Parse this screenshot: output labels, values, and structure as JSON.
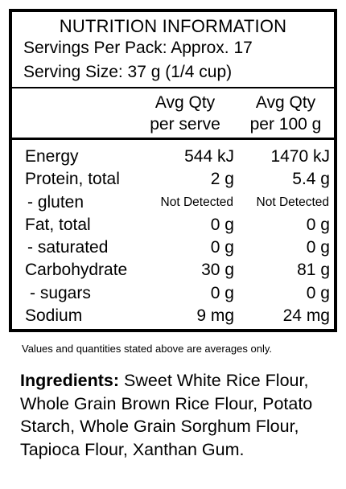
{
  "panel": {
    "title": "NUTRITION INFORMATION",
    "servings_per_pack": "Servings Per Pack: Approx. 17",
    "serving_size": "Serving Size: 37 g (1/4 cup)"
  },
  "columns": {
    "per_serve": [
      "Avg Qty",
      "per serve"
    ],
    "per_100g": [
      "Avg Qty",
      "per 100 g"
    ]
  },
  "rows": [
    {
      "label": "Energy",
      "per_serve": "544 kJ",
      "per_100g": "1470 kJ"
    },
    {
      "label": "Protein, total",
      "per_serve": "2 g",
      "per_100g": "5.4 g"
    },
    {
      "label": "- gluten",
      "per_serve": "Not Detected",
      "per_100g": "Not Detected"
    },
    {
      "label": "Fat, total",
      "per_serve": "0 g",
      "per_100g": "0 g"
    },
    {
      "label": "- saturated",
      "per_serve": "0 g",
      "per_100g": "0 g"
    },
    {
      "label": "Carbohydrate",
      "per_serve": "30 g",
      "per_100g": "81 g"
    },
    {
      "label": "- sugars",
      "per_serve": "0 g",
      "per_100g": "0 g"
    },
    {
      "label": "Sodium",
      "per_serve": "9 mg",
      "per_100g": "24 mg"
    }
  ],
  "note": "Values and quantities stated above are averages only.",
  "ingredients": {
    "heading": "Ingredients:",
    "text": "Sweet White Rice Flour, Whole Grain Brown Rice Flour, Potato Starch, Whole Grain Sorghum Flour, Tapioca Flour, Xanthan Gum."
  }
}
